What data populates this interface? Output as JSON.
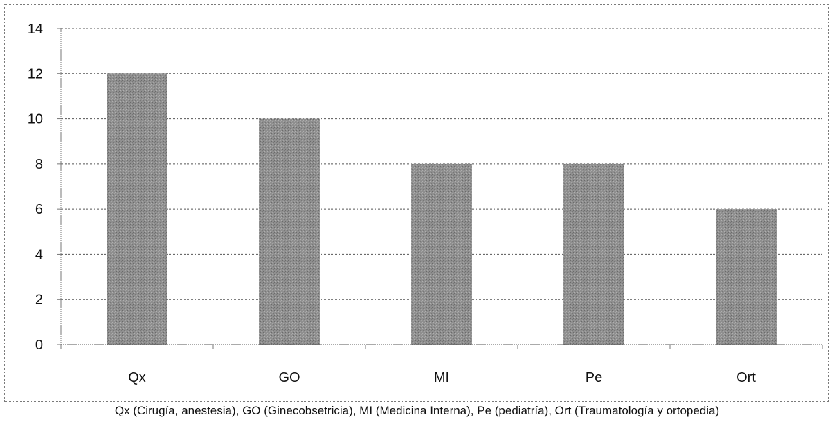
{
  "chart_data": {
    "type": "bar",
    "categories": [
      "Qx",
      "GO",
      "MI",
      "Pe",
      "Ort"
    ],
    "values": [
      12,
      10,
      8,
      8,
      6
    ],
    "ylim": [
      0,
      14
    ],
    "yticks": [
      "0",
      "2",
      "4",
      "6",
      "8",
      "10",
      "12",
      "14"
    ],
    "grid": true,
    "legend": "none",
    "bar_color": "#8c8c8c",
    "caption": "Qx (Cirugía, anestesia), GO (Ginecobsetricia), MI (Medicina Interna), Pe (pediatría), Ort (Traumatología y ortopedia)"
  }
}
